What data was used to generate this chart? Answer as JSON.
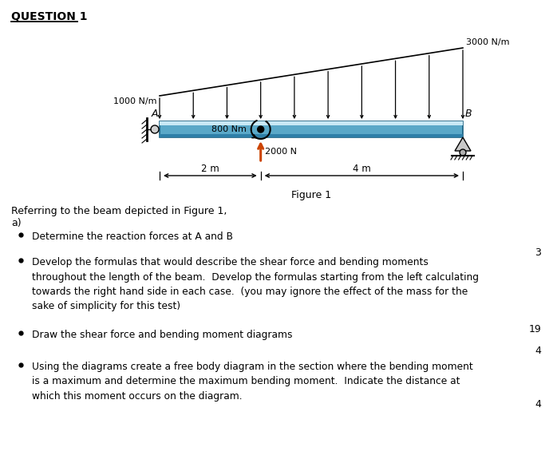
{
  "title": "QUESTION 1",
  "figure_label": "Figure 1",
  "load_label_left": "1000 N/m",
  "load_label_right": "3000 N/m",
  "moment_label": "800 Nm",
  "point_force_label": "2000 N",
  "dim1_label": "2 m",
  "dim2_label": "4 m",
  "A_label": "A",
  "B_label": "B",
  "beam_color_light": "#7ec8e3",
  "beam_color_mid": "#5aa8c8",
  "beam_color_dark": "#2e7fa8",
  "beam_highlight": "#c8e8f5",
  "force_arrow_color": "#cc4400",
  "bg_color": "#ffffff",
  "text_color": "#000000",
  "bullet_items": [
    "Determine the reaction forces at A and B",
    "Develop the formulas that would describe the shear force and bending moments\nthroughout the length of the beam.  Develop the formulas starting from the left calculating\ntowards the right hand side in each case.  (you may ignore the effect of the mass for the\nsake of simplicity for this test)",
    "Draw the shear force and bending moment diagrams",
    "Using the diagrams create a free body diagram in the section where the bending moment\nis a maximum and determine the maximum bending moment.  Indicate the distance at\nwhich this moment occurs on the diagram."
  ],
  "marks": [
    3,
    19,
    4,
    4
  ],
  "intro_line1": "Referring to the beam depicted in Figure 1,",
  "intro_line2": "a)"
}
